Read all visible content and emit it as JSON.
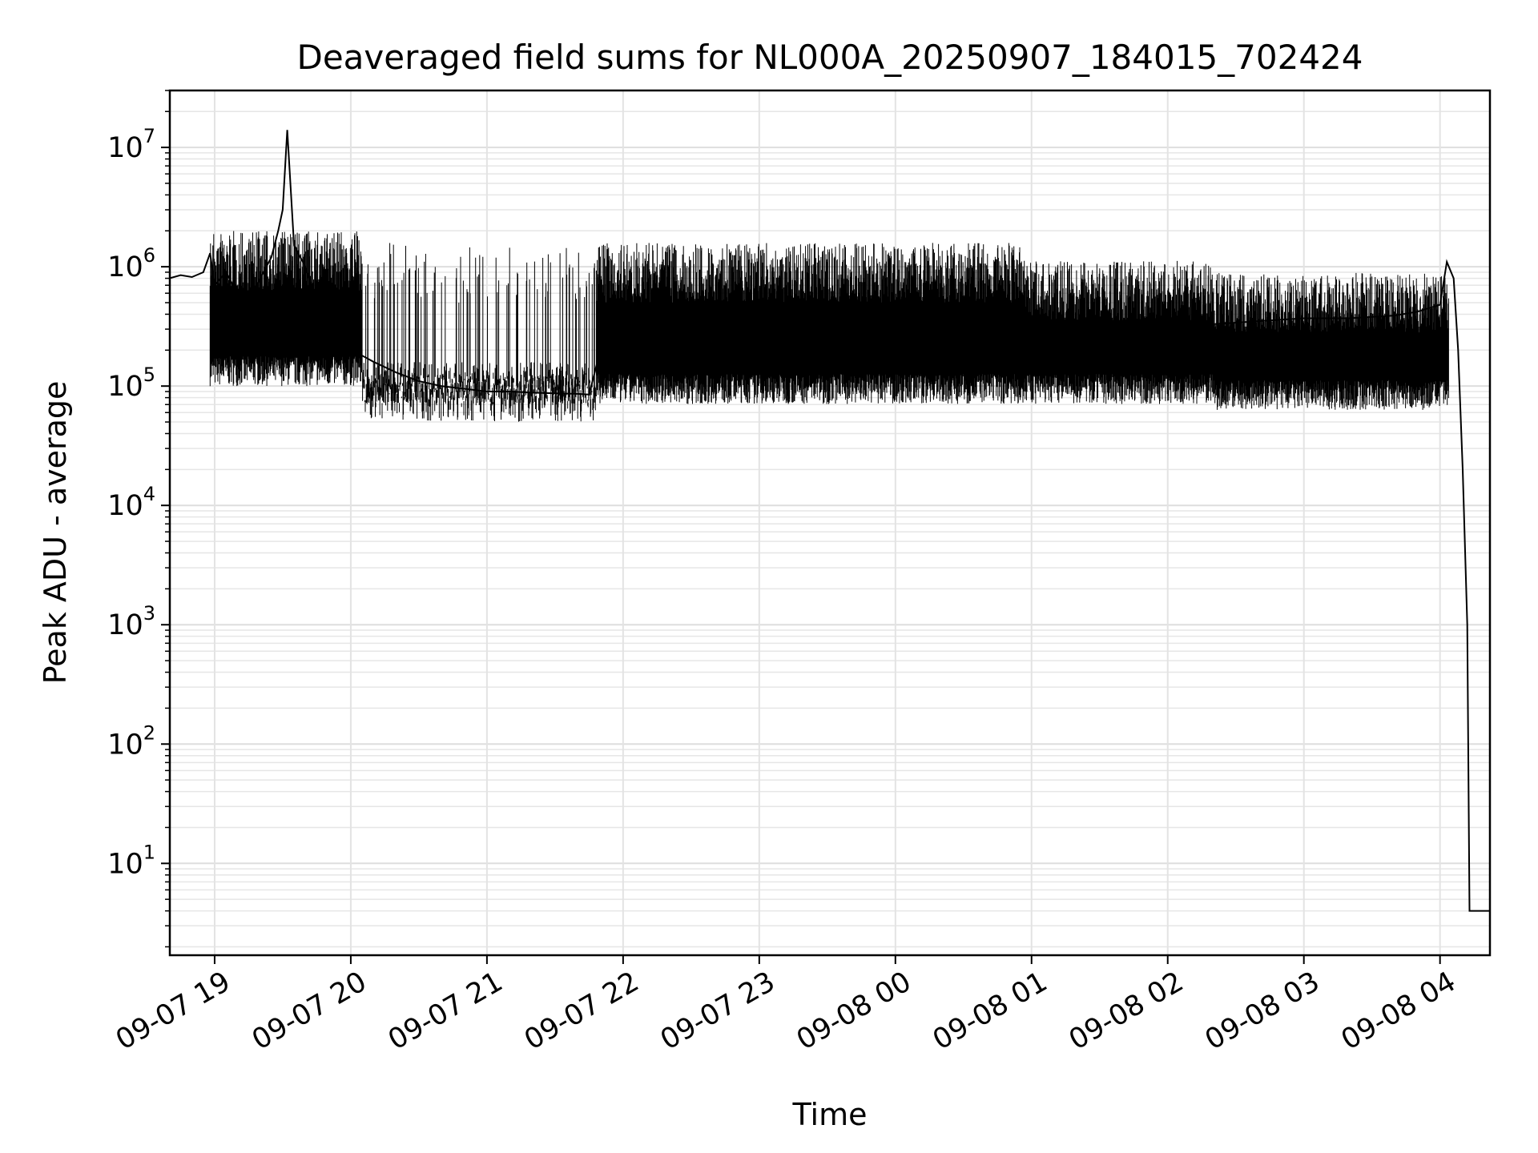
{
  "chart_data": {
    "type": "line",
    "title": "Deaveraged field sums for NL000A_20250907_184015_702424",
    "xlabel": "Time",
    "ylabel": "Peak ADU - average",
    "yscale": "log",
    "ylim": [
      1.7,
      30000000
    ],
    "xlim": [
      "2025-09-07 18:40:15",
      "2025-09-08 04:22:00"
    ],
    "grid": true,
    "line_color": "#000000",
    "x_ticks": [
      {
        "label": "09-07 19",
        "value": "2025-09-07 19:00"
      },
      {
        "label": "09-07 20",
        "value": "2025-09-07 20:00"
      },
      {
        "label": "09-07 21",
        "value": "2025-09-07 21:00"
      },
      {
        "label": "09-07 22",
        "value": "2025-09-07 22:00"
      },
      {
        "label": "09-07 23",
        "value": "2025-09-07 23:00"
      },
      {
        "label": "09-08 00",
        "value": "2025-09-08 00:00"
      },
      {
        "label": "09-08 01",
        "value": "2025-09-08 01:00"
      },
      {
        "label": "09-08 02",
        "value": "2025-09-08 02:00"
      },
      {
        "label": "09-08 03",
        "value": "2025-09-08 03:00"
      },
      {
        "label": "09-08 04",
        "value": "2025-09-08 04:00"
      }
    ],
    "y_ticks": [
      {
        "base": "10",
        "exp": "1",
        "value": 10
      },
      {
        "base": "10",
        "exp": "2",
        "value": 100
      },
      {
        "base": "10",
        "exp": "3",
        "value": 1000
      },
      {
        "base": "10",
        "exp": "4",
        "value": 10000
      },
      {
        "base": "10",
        "exp": "5",
        "value": 100000
      },
      {
        "base": "10",
        "exp": "6",
        "value": 1000000
      },
      {
        "base": "10",
        "exp": "7",
        "value": 10000000
      }
    ],
    "series": [
      {
        "x": [
          "2025-09-07 18:40",
          "2025-09-07 18:45",
          "2025-09-07 18:50",
          "2025-09-07 18:55",
          "2025-09-07 18:58",
          "2025-09-07 19:00",
          "2025-09-07 19:05",
          "2025-09-07 19:10",
          "2025-09-07 19:15",
          "2025-09-07 19:20",
          "2025-09-07 19:25",
          "2025-09-07 19:28",
          "2025-09-07 19:30",
          "2025-09-07 19:32",
          "2025-09-07 19:35",
          "2025-09-07 19:40",
          "2025-09-07 19:45",
          "2025-09-07 19:50",
          "2025-09-07 19:55",
          "2025-09-07 20:00",
          "2025-09-07 20:05",
          "2025-09-07 20:10",
          "2025-09-07 20:20",
          "2025-09-07 20:30",
          "2025-09-07 20:40",
          "2025-09-07 20:50",
          "2025-09-07 21:00",
          "2025-09-07 21:10",
          "2025-09-07 21:20",
          "2025-09-07 21:30",
          "2025-09-07 21:40",
          "2025-09-07 21:45",
          "2025-09-07 21:50",
          "2025-09-07 22:00",
          "2025-09-07 22:10",
          "2025-09-07 22:20",
          "2025-09-07 22:30",
          "2025-09-07 22:40",
          "2025-09-07 22:50",
          "2025-09-07 23:00",
          "2025-09-07 23:10",
          "2025-09-07 23:20",
          "2025-09-07 23:30",
          "2025-09-07 23:40",
          "2025-09-07 23:50",
          "2025-09-08 00:00",
          "2025-09-08 00:10",
          "2025-09-08 00:20",
          "2025-09-08 00:30",
          "2025-09-08 00:40",
          "2025-09-08 00:50",
          "2025-09-08 01:00",
          "2025-09-08 01:10",
          "2025-09-08 01:20",
          "2025-09-08 01:30",
          "2025-09-08 01:40",
          "2025-09-08 01:50",
          "2025-09-08 02:00",
          "2025-09-08 02:10",
          "2025-09-08 02:20",
          "2025-09-08 02:30",
          "2025-09-08 02:40",
          "2025-09-08 02:50",
          "2025-09-08 03:00",
          "2025-09-08 03:10",
          "2025-09-08 03:20",
          "2025-09-08 03:30",
          "2025-09-08 03:40",
          "2025-09-08 03:50",
          "2025-09-08 04:00",
          "2025-09-08 04:03",
          "2025-09-08 04:06",
          "2025-09-08 04:08",
          "2025-09-08 04:10",
          "2025-09-08 04:12",
          "2025-09-08 04:13",
          "2025-09-08 04:15",
          "2025-09-08 04:22"
        ],
        "values": [
          800000,
          850000,
          820000,
          900000,
          1300000,
          700000,
          900000,
          600000,
          500000,
          800000,
          1200000,
          2000000,
          3000000,
          14000000,
          1500000,
          1000000,
          500000,
          300000,
          250000,
          200000,
          180000,
          160000,
          130000,
          110000,
          100000,
          95000,
          90000,
          90000,
          88000,
          87000,
          86000,
          85000,
          200000,
          300000,
          400000,
          450000,
          500000,
          500000,
          500000,
          500000,
          500000,
          480000,
          480000,
          470000,
          460000,
          450000,
          450000,
          440000,
          420000,
          400000,
          380000,
          350000,
          330000,
          310000,
          300000,
          300000,
          300000,
          300000,
          320000,
          330000,
          340000,
          350000,
          360000,
          370000,
          370000,
          370000,
          380000,
          390000,
          420000,
          480000,
          1100000,
          800000,
          200000,
          20000,
          1000,
          4,
          4,
          4
        ]
      }
    ]
  }
}
